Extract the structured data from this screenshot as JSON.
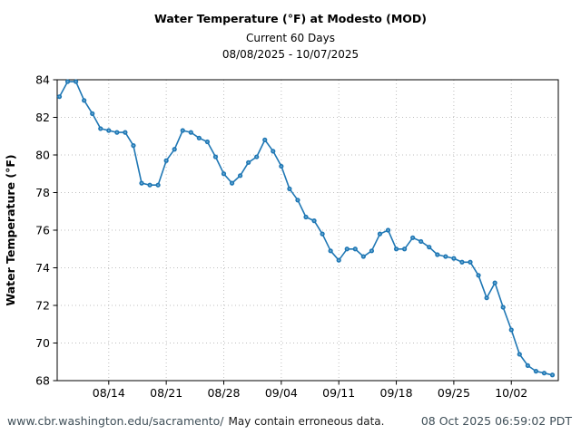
{
  "header": {
    "title": "Water Temperature (°F) at Modesto (MOD)",
    "subtitle": "Current 60 Days",
    "date_range": "08/08/2025 - 10/07/2025"
  },
  "footer": {
    "url": "www.cbr.washington.edu/sacramento/",
    "note": "May contain erroneous data.",
    "timestamp": "08 Oct 2025 06:59:02 PDT"
  },
  "colors": {
    "line": "#1f77b4",
    "marker_center": "#6faed6",
    "grid": "#bfbfbf",
    "frame": "#000000",
    "tick_text": "#000000",
    "footer_text": "#3f4f58"
  },
  "chart_data": {
    "type": "line",
    "title": "Water Temperature (°F) at Modesto (MOD)",
    "subtitle": "Current 60 Days",
    "xlabel": "",
    "ylabel": "Water Temperature (°F)",
    "ylim": [
      68,
      84
    ],
    "yticks": [
      68,
      70,
      72,
      74,
      76,
      78,
      80,
      82,
      84
    ],
    "grid": true,
    "legend": "none",
    "marker": "circle",
    "xtick_labels": [
      "08/14",
      "08/21",
      "08/28",
      "09/04",
      "09/11",
      "09/18",
      "09/25",
      "10/02"
    ],
    "xtick_day_indices": [
      6,
      13,
      20,
      27,
      34,
      41,
      48,
      55
    ],
    "dates": [
      "08/08",
      "08/09",
      "08/10",
      "08/11",
      "08/12",
      "08/13",
      "08/14",
      "08/15",
      "08/16",
      "08/17",
      "08/18",
      "08/19",
      "08/20",
      "08/21",
      "08/22",
      "08/23",
      "08/24",
      "08/25",
      "08/26",
      "08/27",
      "08/28",
      "08/29",
      "08/30",
      "08/31",
      "09/01",
      "09/02",
      "09/03",
      "09/04",
      "09/05",
      "09/06",
      "09/07",
      "09/08",
      "09/09",
      "09/10",
      "09/11",
      "09/12",
      "09/13",
      "09/14",
      "09/15",
      "09/16",
      "09/17",
      "09/18",
      "09/19",
      "09/20",
      "09/21",
      "09/22",
      "09/23",
      "09/24",
      "09/25",
      "09/26",
      "09/27",
      "09/28",
      "09/29",
      "09/30",
      "10/01",
      "10/02",
      "10/03",
      "10/04",
      "10/05",
      "10/06",
      "10/07"
    ],
    "values": [
      83.1,
      83.9,
      83.9,
      82.9,
      82.2,
      81.4,
      81.3,
      81.2,
      81.2,
      80.5,
      78.5,
      78.4,
      78.4,
      79.7,
      80.3,
      81.3,
      81.2,
      80.9,
      80.7,
      79.9,
      79.0,
      78.5,
      78.9,
      79.6,
      79.9,
      80.8,
      80.2,
      79.4,
      78.2,
      77.6,
      76.7,
      76.5,
      75.8,
      74.9,
      74.4,
      75.0,
      75.0,
      74.6,
      74.9,
      75.8,
      76.0,
      75.0,
      75.0,
      75.6,
      75.4,
      75.1,
      74.7,
      74.6,
      74.5,
      74.3,
      74.3,
      73.6,
      72.4,
      73.2,
      71.9,
      70.7,
      69.4,
      68.8,
      68.5,
      68.4,
      68.3
    ]
  }
}
